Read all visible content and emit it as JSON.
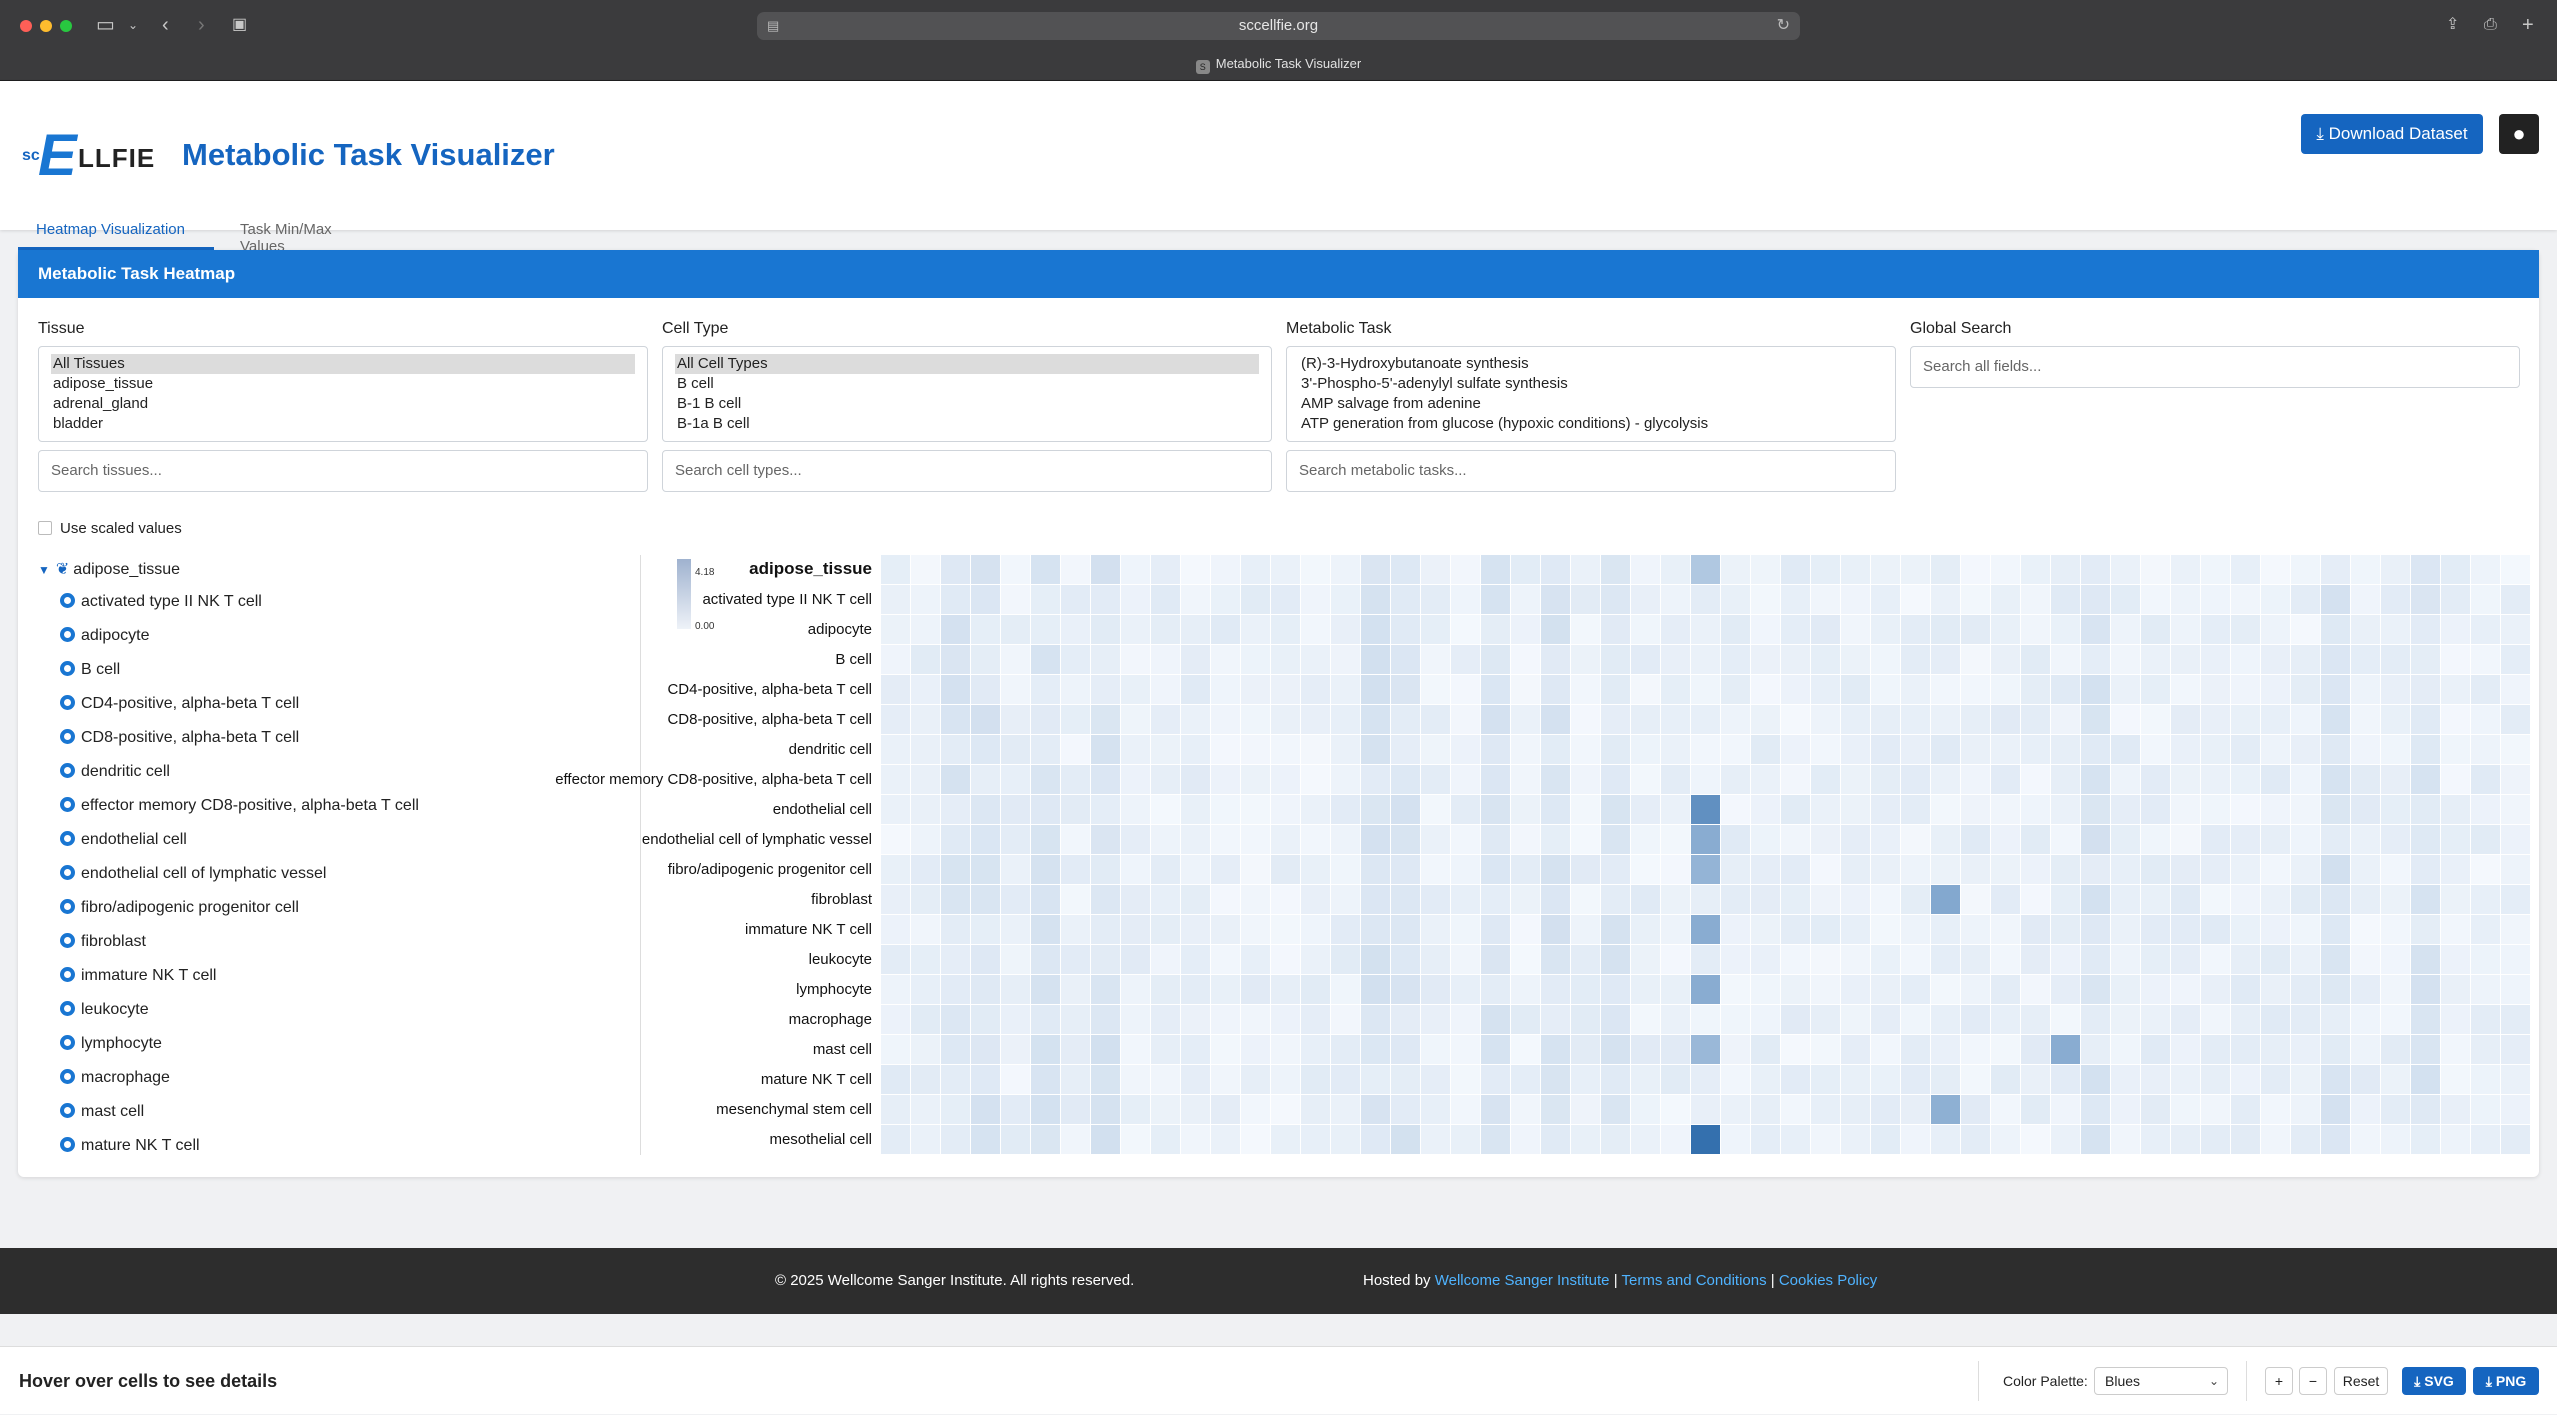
{
  "browser": {
    "url": "sccellfie.org",
    "tab_title": "Metabolic Task Visualizer"
  },
  "header": {
    "logo_sc": "sc",
    "logo_e": "E",
    "logo_rest": "LLFIE",
    "title": "Metabolic Task Visualizer",
    "download_label": "Download Dataset"
  },
  "page_tabs": [
    "Heatmap Visualization",
    "Task Min/Max Values"
  ],
  "card": {
    "title": "Metabolic Task Heatmap"
  },
  "filters": {
    "tissue": {
      "label": "Tissue",
      "options": [
        "All Tissues",
        "adipose_tissue",
        "adrenal_gland",
        "bladder"
      ],
      "placeholder": "Search tissues..."
    },
    "cell_type": {
      "label": "Cell Type",
      "options": [
        "All Cell Types",
        "B cell",
        "B-1 B cell",
        "B-1a B cell"
      ],
      "placeholder": "Search cell types..."
    },
    "metabolic_task": {
      "label": "Metabolic Task",
      "options": [
        "(R)-3-Hydroxybutanoate synthesis",
        "3'-Phospho-5'-adenylyl sulfate synthesis",
        "AMP salvage from adenine",
        "ATP generation from glucose (hypoxic conditions) - glycolysis"
      ],
      "placeholder": "Search metabolic tasks..."
    },
    "global": {
      "label": "Global Search",
      "placeholder": "Search all fields..."
    }
  },
  "scaled_label": "Use scaled values",
  "tree": {
    "root": "adipose_tissue",
    "items": [
      "activated type II NK T cell",
      "adipocyte",
      "B cell",
      "CD4-positive, alpha-beta T cell",
      "CD8-positive, alpha-beta T cell",
      "dendritic cell",
      "effector memory CD8-positive, alpha-beta T cell",
      "endothelial cell",
      "endothelial cell of lymphatic vessel",
      "fibro/adipogenic progenitor cell",
      "fibroblast",
      "immature NK T cell",
      "leukocyte",
      "lymphocyte",
      "macrophage",
      "mast cell",
      "mature NK T cell"
    ]
  },
  "chart_data": {
    "type": "heatmap",
    "title": "adipose_tissue",
    "legend_max": "4.18",
    "legend_min": "0.00",
    "rows": [
      "activated type II NK T cell",
      "adipocyte",
      "B cell",
      "CD4-positive, alpha-beta T cell",
      "CD8-positive, alpha-beta T cell",
      "dendritic cell",
      "effector memory CD8-positive, alpha-beta T cell",
      "endothelial cell",
      "endothelial cell of lymphatic vessel",
      "fibro/adipogenic progenitor cell",
      "fibroblast",
      "immature NK T cell",
      "leukocyte",
      "lymphocyte",
      "macrophage",
      "mast cell",
      "mature NK T cell",
      "mesenchymal stem cell",
      "mesothelial cell"
    ],
    "n_columns": 55,
    "color_scale": [
      "#f4f8fd",
      "#08519c"
    ],
    "value_range": [
      0,
      4.18
    ],
    "highlights": [
      {
        "row": 7,
        "col": 27,
        "value": 2.6
      },
      {
        "row": 8,
        "col": 27,
        "value": 1.9
      },
      {
        "row": 9,
        "col": 27,
        "value": 1.7
      },
      {
        "row": 10,
        "col": 35,
        "value": 2.0
      },
      {
        "row": 11,
        "col": 27,
        "value": 1.9
      },
      {
        "row": 13,
        "col": 27,
        "value": 1.9
      },
      {
        "row": 15,
        "col": 27,
        "value": 1.6
      },
      {
        "row": 15,
        "col": 39,
        "value": 1.9
      },
      {
        "row": 17,
        "col": 35,
        "value": 1.8
      },
      {
        "row": 18,
        "col": 27,
        "value": 3.4
      },
      {
        "row": -1,
        "col": 27,
        "value": 1.2
      }
    ]
  },
  "footer": {
    "copyright": "© 2025 Wellcome Sanger Institute. All rights reserved.",
    "hosted_by": "Hosted by",
    "host_link": "Wellcome Sanger Institute",
    "terms": "Terms and Conditions",
    "cookies": "Cookies Policy",
    "sep": "|"
  },
  "bottom_bar": {
    "hover_text": "Hover over cells to see details",
    "palette_label": "Color Palette:",
    "palette_value": "Blues",
    "zoom_in": "+",
    "zoom_out": "−",
    "reset": "Reset",
    "svg": "SVG",
    "png": "PNG"
  }
}
